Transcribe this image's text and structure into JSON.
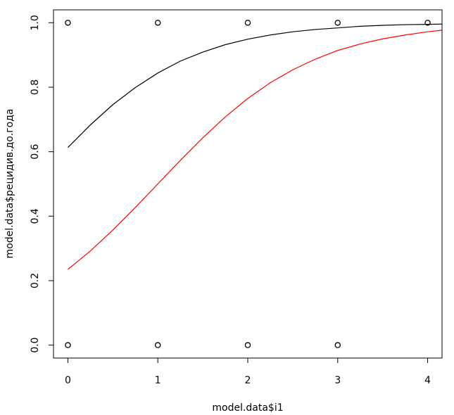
{
  "chart_data": {
    "type": "scatter",
    "xlabel": "model.data$i1",
    "ylabel": "model.data$рецидив.до.года",
    "xlim": [
      -0.16,
      4.16
    ],
    "ylim": [
      -0.04,
      1.04
    ],
    "xticks": [
      0,
      1,
      2,
      3,
      4
    ],
    "yticks": [
      {
        "value": 0,
        "label": "0.0"
      },
      {
        "value": 0.2,
        "label": "0.2"
      },
      {
        "value": 0.4,
        "label": "0.4"
      },
      {
        "value": 0.6,
        "label": "0.6"
      },
      {
        "value": 0.8,
        "label": "0.8"
      },
      {
        "value": 1,
        "label": "1.0"
      }
    ],
    "points": {
      "color": "#000000",
      "x": [
        0,
        1,
        2,
        3,
        4,
        0,
        1,
        2,
        3
      ],
      "y": [
        1,
        1,
        1,
        1,
        1,
        0,
        0,
        0,
        0
      ]
    },
    "lines": [
      {
        "color": "#000000",
        "x": [
          0,
          0.25,
          0.5,
          0.75,
          1,
          1.25,
          1.5,
          1.75,
          2,
          2.25,
          2.5,
          2.75,
          3,
          3.25,
          3.5,
          3.75,
          4,
          4.16
        ],
        "values": [
          0.613,
          0.683,
          0.746,
          0.799,
          0.844,
          0.881,
          0.909,
          0.932,
          0.949,
          0.962,
          0.972,
          0.979,
          0.984,
          0.989,
          0.992,
          0.994,
          0.995,
          0.996
        ]
      },
      {
        "color": "#ff0000",
        "x": [
          0,
          0.25,
          0.5,
          0.75,
          1,
          1.25,
          1.5,
          1.75,
          2,
          2.25,
          2.5,
          2.75,
          3,
          3.25,
          3.5,
          3.75,
          4,
          4.16
        ],
        "values": [
          0.235,
          0.292,
          0.357,
          0.427,
          0.5,
          0.573,
          0.643,
          0.708,
          0.765,
          0.814,
          0.854,
          0.887,
          0.914,
          0.934,
          0.95,
          0.962,
          0.972,
          0.977
        ]
      }
    ]
  }
}
